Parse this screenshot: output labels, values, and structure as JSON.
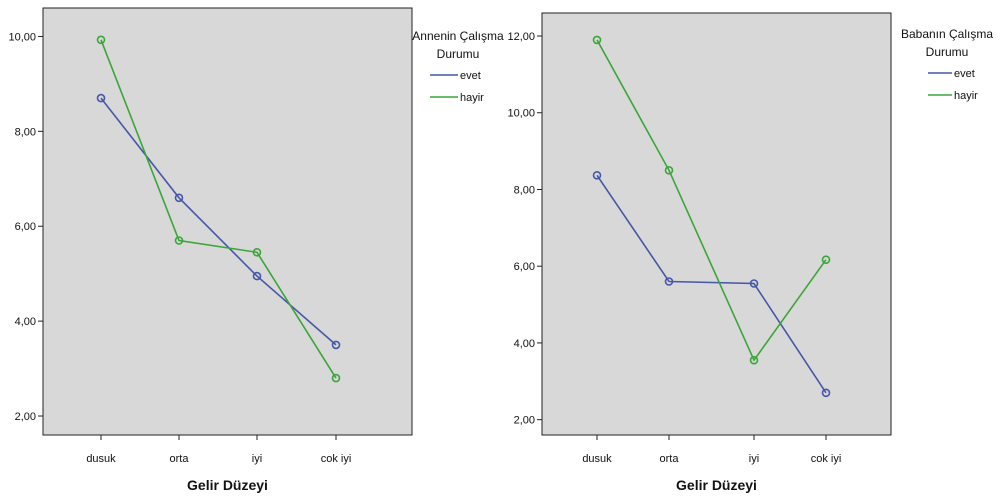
{
  "chart_data": [
    {
      "type": "line",
      "title": "",
      "xlabel": "Gelir Düzeyi",
      "ylabel": "",
      "categories": [
        "dusuk",
        "orta",
        "iyi",
        "cok iyi"
      ],
      "ylim": [
        1.6,
        10.6
      ],
      "yticks": [
        "2,00",
        "4,00",
        "6,00",
        "8,00",
        "10,00"
      ],
      "ytick_values": [
        2,
        4,
        6,
        8,
        10
      ],
      "grid": false,
      "legend": {
        "title_line1": "Annenin Çalışma",
        "title_line2": "Durumu",
        "placement": "right"
      },
      "series": [
        {
          "name": "evet",
          "color": "#4557a8",
          "values": [
            8.7,
            6.6,
            4.95,
            3.5
          ]
        },
        {
          "name": "hayir",
          "color": "#3aa638",
          "values": [
            9.93,
            5.7,
            5.45,
            2.8
          ]
        }
      ]
    },
    {
      "type": "line",
      "title": "",
      "xlabel": "Gelir Düzeyi",
      "ylabel": "",
      "categories": [
        "dusuk",
        "orta",
        "iyi",
        "cok iyi"
      ],
      "ylim": [
        1.6,
        12.6
      ],
      "yticks": [
        "2,00",
        "4,00",
        "6,00",
        "8,00",
        "10,00",
        "12,00"
      ],
      "ytick_values": [
        2,
        4,
        6,
        8,
        10,
        12
      ],
      "grid": false,
      "legend": {
        "title_line1": "Babanın Çalışma",
        "title_line2": "Durumu",
        "placement": "right"
      },
      "series": [
        {
          "name": "evet",
          "color": "#4557a8",
          "values": [
            8.37,
            5.6,
            5.55,
            2.7
          ]
        },
        {
          "name": "hayir",
          "color": "#3aa638",
          "values": [
            11.9,
            8.5,
            3.55,
            6.17
          ]
        }
      ]
    }
  ]
}
